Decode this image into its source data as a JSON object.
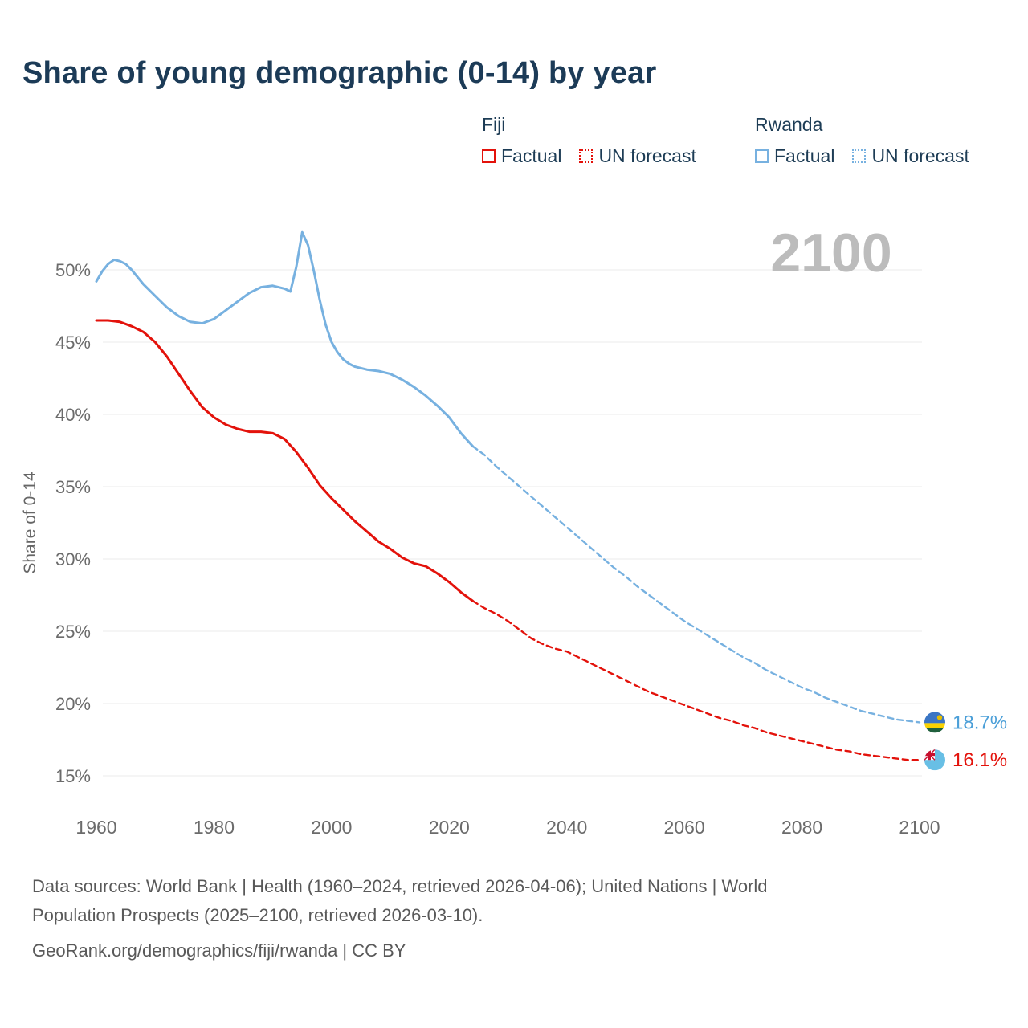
{
  "title": "Share of young demographic (0-14) by year",
  "watermark": "2100",
  "legend": {
    "fiji": {
      "country": "Fiji",
      "factual": "Factual",
      "forecast": "UN forecast"
    },
    "rwanda": {
      "country": "Rwanda",
      "factual": "Factual",
      "forecast": "UN forecast"
    }
  },
  "end_labels": {
    "rwanda": "18.7%",
    "fiji": "16.1%"
  },
  "footer": {
    "line1": "Data sources: World Bank | Health (1960–2024, retrieved 2026-04-06); United Nations | World",
    "line2": "Population Prospects (2025–2100, retrieved 2026-03-10).",
    "line3": "GeoRank.org/demographics/fiji/rwanda | CC BY"
  },
  "colors": {
    "fiji": "#e3120b",
    "fiji_label_text": "#e3120b",
    "rwanda": "#77b1e0",
    "rwanda_label_text": "#4b9fd8",
    "title_text": "#1c3b57",
    "watermark": "#bcbcbc",
    "grid": "#ebebeb",
    "axis_text": "#6b6b6b",
    "rwanda_flag": {
      "blue": "#3a75c4",
      "yellow": "#fad201",
      "green": "#20603d",
      "sun": "#e5be01"
    },
    "fiji_flag": {
      "blue": "#68bfe5",
      "white": "#ffffff",
      "red": "#c8102e"
    }
  },
  "chart_data": {
    "type": "line",
    "title": "Share of young demographic (0-14) by year",
    "xlabel": "",
    "ylabel": "Share of 0-14",
    "x_ticks": [
      1960,
      1980,
      2000,
      2020,
      2040,
      2060,
      2080,
      2100
    ],
    "y_ticks": [
      15,
      20,
      25,
      30,
      35,
      40,
      45,
      50
    ],
    "y_tick_suffix": "%",
    "xlim": [
      1956,
      2113
    ],
    "ylim": [
      13.5,
      54
    ],
    "grid": "horizontal",
    "legend_position": "top-right",
    "series": [
      {
        "id": "fiji-factual",
        "name": "Fiji Factual",
        "country": "Fiji",
        "kind": "Factual",
        "style": "solid",
        "color": "#e3120b",
        "points": [
          [
            1960,
            46.5
          ],
          [
            1962,
            46.5
          ],
          [
            1964,
            46.4
          ],
          [
            1966,
            46.1
          ],
          [
            1968,
            45.7
          ],
          [
            1970,
            45.0
          ],
          [
            1972,
            44.0
          ],
          [
            1974,
            42.8
          ],
          [
            1976,
            41.6
          ],
          [
            1978,
            40.5
          ],
          [
            1980,
            39.8
          ],
          [
            1982,
            39.3
          ],
          [
            1984,
            39.0
          ],
          [
            1986,
            38.8
          ],
          [
            1988,
            38.8
          ],
          [
            1990,
            38.7
          ],
          [
            1992,
            38.3
          ],
          [
            1994,
            37.4
          ],
          [
            1996,
            36.3
          ],
          [
            1998,
            35.1
          ],
          [
            2000,
            34.2
          ],
          [
            2002,
            33.4
          ],
          [
            2004,
            32.6
          ],
          [
            2006,
            31.9
          ],
          [
            2008,
            31.2
          ],
          [
            2010,
            30.7
          ],
          [
            2012,
            30.1
          ],
          [
            2014,
            29.7
          ],
          [
            2016,
            29.5
          ],
          [
            2018,
            29.0
          ],
          [
            2020,
            28.4
          ],
          [
            2022,
            27.7
          ],
          [
            2024,
            27.1
          ]
        ]
      },
      {
        "id": "fiji-forecast",
        "name": "Fiji UN forecast",
        "country": "Fiji",
        "kind": "UN forecast",
        "style": "dashed",
        "color": "#e3120b",
        "points": [
          [
            2024,
            27.1
          ],
          [
            2026,
            26.6
          ],
          [
            2028,
            26.2
          ],
          [
            2030,
            25.7
          ],
          [
            2032,
            25.1
          ],
          [
            2034,
            24.5
          ],
          [
            2036,
            24.1
          ],
          [
            2038,
            23.8
          ],
          [
            2040,
            23.6
          ],
          [
            2042,
            23.2
          ],
          [
            2044,
            22.8
          ],
          [
            2046,
            22.4
          ],
          [
            2048,
            22.0
          ],
          [
            2050,
            21.6
          ],
          [
            2052,
            21.2
          ],
          [
            2054,
            20.8
          ],
          [
            2056,
            20.5
          ],
          [
            2058,
            20.2
          ],
          [
            2060,
            19.9
          ],
          [
            2062,
            19.6
          ],
          [
            2064,
            19.3
          ],
          [
            2066,
            19.0
          ],
          [
            2068,
            18.8
          ],
          [
            2070,
            18.5
          ],
          [
            2072,
            18.3
          ],
          [
            2074,
            18.0
          ],
          [
            2076,
            17.8
          ],
          [
            2078,
            17.6
          ],
          [
            2080,
            17.4
          ],
          [
            2082,
            17.2
          ],
          [
            2084,
            17.0
          ],
          [
            2086,
            16.8
          ],
          [
            2088,
            16.7
          ],
          [
            2090,
            16.5
          ],
          [
            2092,
            16.4
          ],
          [
            2094,
            16.3
          ],
          [
            2096,
            16.2
          ],
          [
            2098,
            16.1
          ],
          [
            2100,
            16.1
          ]
        ]
      },
      {
        "id": "rwanda-factual",
        "name": "Rwanda Factual",
        "country": "Rwanda",
        "kind": "Factual",
        "style": "solid",
        "color": "#77b1e0",
        "points": [
          [
            1960,
            49.2
          ],
          [
            1961,
            49.9
          ],
          [
            1962,
            50.4
          ],
          [
            1963,
            50.7
          ],
          [
            1964,
            50.6
          ],
          [
            1965,
            50.4
          ],
          [
            1966,
            50.0
          ],
          [
            1968,
            49.0
          ],
          [
            1970,
            48.2
          ],
          [
            1972,
            47.4
          ],
          [
            1974,
            46.8
          ],
          [
            1976,
            46.4
          ],
          [
            1978,
            46.3
          ],
          [
            1980,
            46.6
          ],
          [
            1982,
            47.2
          ],
          [
            1984,
            47.8
          ],
          [
            1986,
            48.4
          ],
          [
            1988,
            48.8
          ],
          [
            1990,
            48.9
          ],
          [
            1992,
            48.7
          ],
          [
            1993,
            48.5
          ],
          [
            1994,
            50.2
          ],
          [
            1995,
            52.6
          ],
          [
            1996,
            51.7
          ],
          [
            1997,
            49.9
          ],
          [
            1998,
            47.9
          ],
          [
            1999,
            46.2
          ],
          [
            2000,
            45.0
          ],
          [
            2001,
            44.3
          ],
          [
            2002,
            43.8
          ],
          [
            2003,
            43.5
          ],
          [
            2004,
            43.3
          ],
          [
            2006,
            43.1
          ],
          [
            2008,
            43.0
          ],
          [
            2010,
            42.8
          ],
          [
            2012,
            42.4
          ],
          [
            2014,
            41.9
          ],
          [
            2016,
            41.3
          ],
          [
            2018,
            40.6
          ],
          [
            2020,
            39.8
          ],
          [
            2022,
            38.7
          ],
          [
            2024,
            37.8
          ]
        ]
      },
      {
        "id": "rwanda-forecast",
        "name": "Rwanda UN forecast",
        "country": "Rwanda",
        "kind": "UN forecast",
        "style": "dashed",
        "color": "#77b1e0",
        "points": [
          [
            2024,
            37.8
          ],
          [
            2026,
            37.2
          ],
          [
            2028,
            36.4
          ],
          [
            2030,
            35.7
          ],
          [
            2032,
            35.0
          ],
          [
            2034,
            34.3
          ],
          [
            2036,
            33.6
          ],
          [
            2038,
            32.9
          ],
          [
            2040,
            32.2
          ],
          [
            2042,
            31.5
          ],
          [
            2044,
            30.8
          ],
          [
            2046,
            30.1
          ],
          [
            2048,
            29.4
          ],
          [
            2050,
            28.8
          ],
          [
            2052,
            28.1
          ],
          [
            2054,
            27.5
          ],
          [
            2056,
            26.9
          ],
          [
            2058,
            26.3
          ],
          [
            2060,
            25.7
          ],
          [
            2062,
            25.2
          ],
          [
            2064,
            24.7
          ],
          [
            2066,
            24.2
          ],
          [
            2068,
            23.7
          ],
          [
            2070,
            23.2
          ],
          [
            2072,
            22.8
          ],
          [
            2074,
            22.3
          ],
          [
            2076,
            21.9
          ],
          [
            2078,
            21.5
          ],
          [
            2080,
            21.1
          ],
          [
            2082,
            20.8
          ],
          [
            2084,
            20.4
          ],
          [
            2086,
            20.1
          ],
          [
            2088,
            19.8
          ],
          [
            2090,
            19.5
          ],
          [
            2092,
            19.3
          ],
          [
            2094,
            19.1
          ],
          [
            2096,
            18.9
          ],
          [
            2098,
            18.8
          ],
          [
            2100,
            18.7
          ]
        ]
      }
    ],
    "end_values": {
      "rwanda": 18.7,
      "fiji": 16.1
    }
  }
}
